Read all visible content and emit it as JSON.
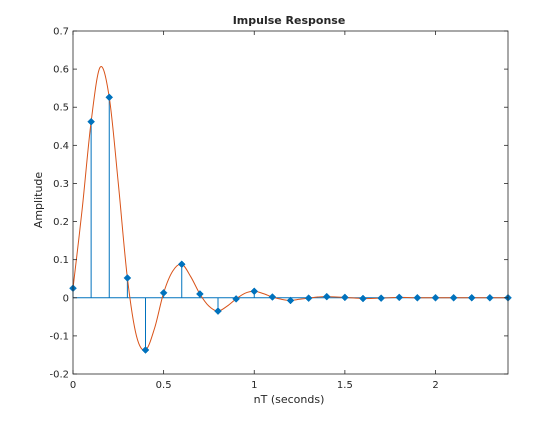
{
  "chart_data": {
    "type": "line",
    "title": "Impulse Response",
    "xlabel": "nT (seconds)",
    "ylabel": "Amplitude",
    "xlim": [
      0,
      2.4
    ],
    "ylim": [
      -0.2,
      0.7
    ],
    "grid": false,
    "xticks": [
      0,
      0.5,
      1,
      1.5,
      2
    ],
    "xtick_labels": [
      "0",
      "0.5",
      "1",
      "1.5",
      "2"
    ],
    "yticks": [
      -0.2,
      -0.1,
      0,
      0.1,
      0.2,
      0.3,
      0.4,
      0.5,
      0.6,
      0.7
    ],
    "ytick_labels": [
      "-0.2",
      "-0.1",
      "0",
      "0.1",
      "0.2",
      "0.3",
      "0.4",
      "0.5",
      "0.6",
      "0.7"
    ],
    "series": [
      {
        "kind": "stem",
        "color": "#0072bd",
        "x": [
          0,
          0.1,
          0.2,
          0.3,
          0.4,
          0.5,
          0.6,
          0.7,
          0.8,
          0.9,
          1.0,
          1.1,
          1.2,
          1.3,
          1.4,
          1.5,
          1.6,
          1.7,
          1.8,
          1.9,
          2.0,
          2.1,
          2.2,
          2.3,
          2.4
        ],
        "y": [
          0.025,
          0.462,
          0.526,
          0.052,
          -0.137,
          0.013,
          0.088,
          0.01,
          -0.035,
          -0.003,
          0.017,
          0.002,
          -0.007,
          -0.001,
          0.003,
          0.001,
          -0.002,
          -0.001,
          0.001,
          0.0,
          0.0,
          0.0,
          0.0,
          0.0,
          0.0
        ]
      },
      {
        "kind": "line",
        "color": "#d95319",
        "x": [
          0,
          0.05,
          0.1,
          0.15,
          0.2,
          0.25,
          0.3,
          0.35,
          0.4,
          0.45,
          0.5,
          0.55,
          0.6,
          0.65,
          0.7,
          0.75,
          0.8,
          0.85,
          0.9,
          0.95,
          1.0,
          1.05,
          1.1,
          1.15,
          1.2,
          1.25,
          1.3,
          1.35,
          1.4,
          1.5,
          1.6,
          1.7,
          1.8,
          1.9,
          2.0,
          2.1,
          2.2,
          2.3,
          2.4
        ],
        "y": [
          0.025,
          0.23,
          0.462,
          0.605,
          0.526,
          0.3,
          0.052,
          -0.1,
          -0.137,
          -0.08,
          0.013,
          0.07,
          0.088,
          0.055,
          0.01,
          -0.022,
          -0.035,
          -0.022,
          -0.003,
          0.012,
          0.017,
          0.011,
          0.002,
          -0.004,
          -0.007,
          -0.004,
          -0.001,
          0.002,
          0.003,
          0.001,
          -0.002,
          -0.001,
          0.001,
          0.0,
          0.0,
          0.0,
          0.0,
          0.0,
          0.0
        ]
      }
    ]
  }
}
